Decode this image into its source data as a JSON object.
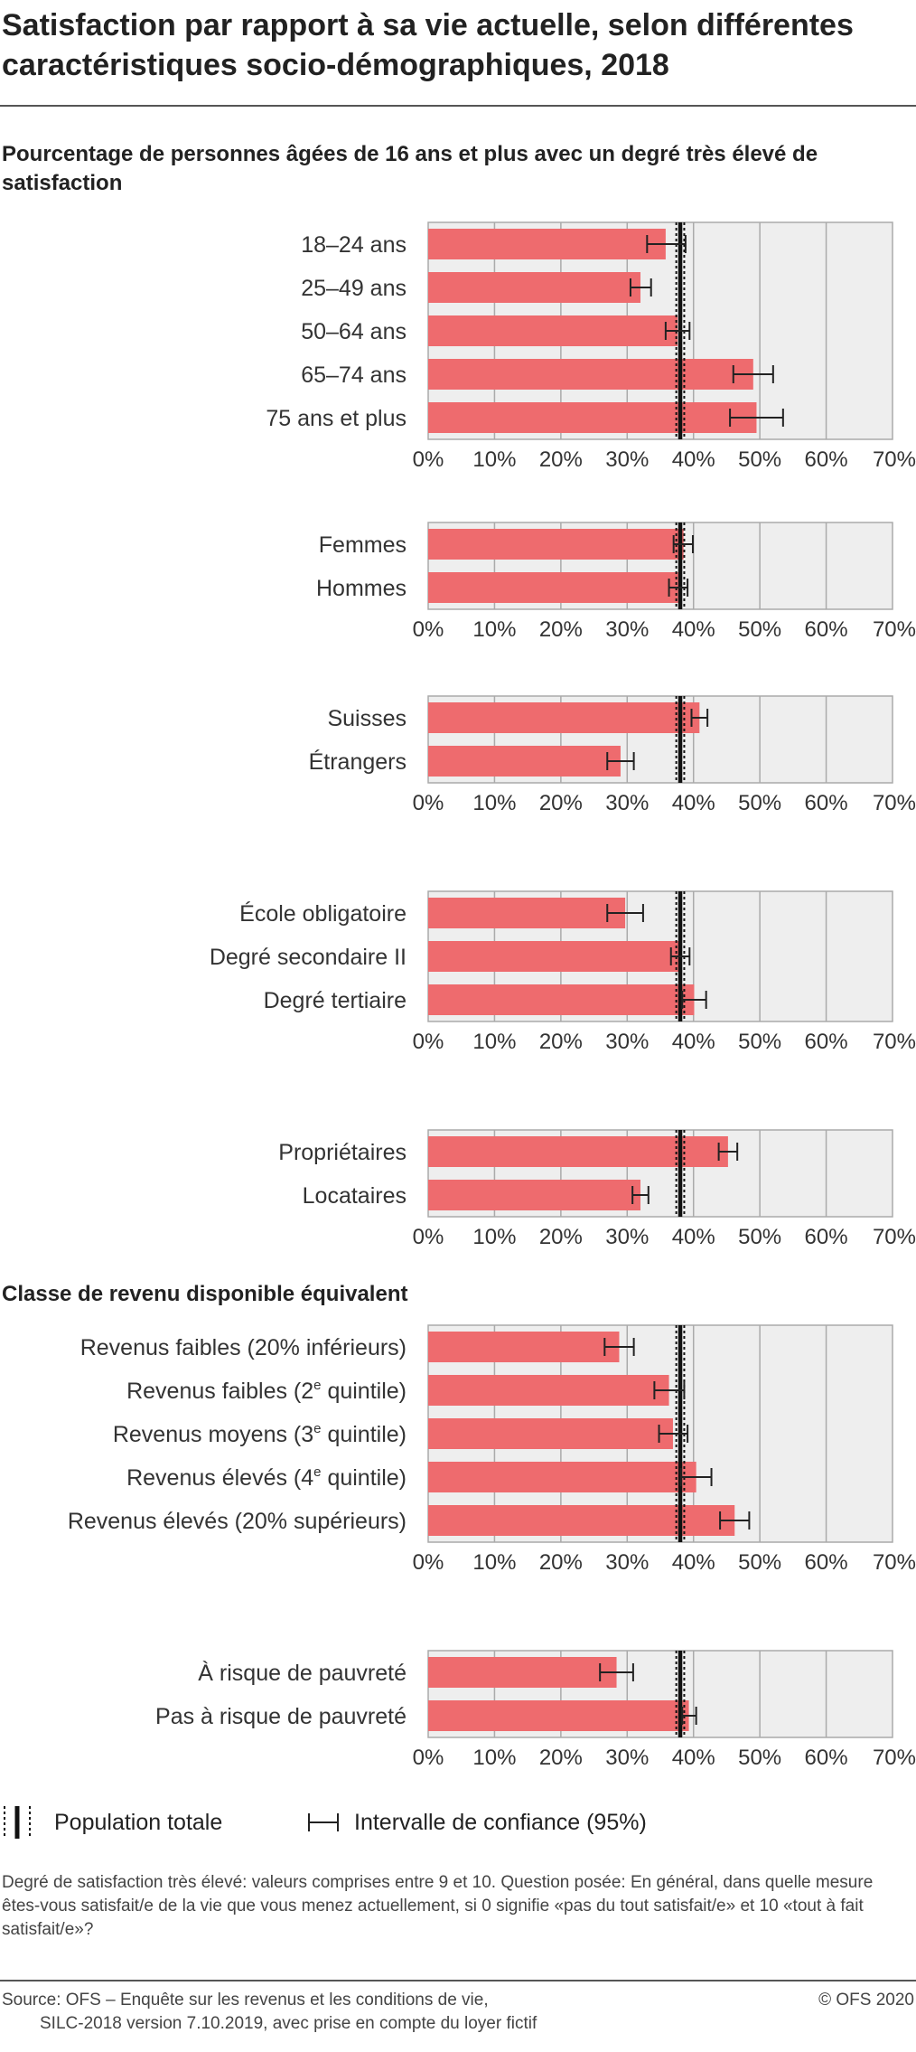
{
  "title": "Satisfaction par rapport à sa vie actuelle, selon différentes caractéristiques socio-démographiques, 2018",
  "subtitle": "Pourcentage de personnes âgées de 16 ans et plus avec un degré très élevé de satisfaction",
  "section_income": "Classe de revenu disponible équivalent",
  "legend": {
    "total_population": "Population totale",
    "confidence_interval": "Intervalle de confiance (95%)"
  },
  "note": "Degré de satisfaction très élevé: valeurs comprises entre 9 et 10. Question posée: En général, dans quelle mesure êtes-vous satisfait/e de la vie que vous menez actuellement, si 0 signifie «pas du tout satisfait/e» et 10 «tout à fait satisfait/e»?",
  "source_line1": "Source: OFS – Enquête sur les revenus et les conditions de vie,",
  "source_line2": "SILC-2018 version 7.10.2019, avec prise en compte du loyer fictif",
  "copyright": "© OFS 2020",
  "colors": {
    "bar": "#ee6b6e",
    "plot_bg": "#eeeeee",
    "grid": "#aaaaaa",
    "total_line": "#111111",
    "error_bar": "#222222"
  },
  "chart_data": {
    "type": "bar",
    "orientation": "horizontal",
    "unit": "%",
    "xlim": [
      0,
      70
    ],
    "x_ticks": [
      "0%",
      "10%",
      "20%",
      "30%",
      "40%",
      "50%",
      "60%",
      "70%"
    ],
    "total_population": {
      "value": 38.0,
      "ci_low": 37.4,
      "ci_high": 38.6
    },
    "panels": [
      {
        "categories": [
          "18–24 ans",
          "25–49 ans",
          "50–64 ans",
          "65–74 ans",
          "75 ans et plus"
        ],
        "values": [
          35.8,
          32.0,
          37.6,
          49.0,
          49.5
        ],
        "ci_low": [
          33.0,
          30.5,
          35.8,
          46.0,
          45.5
        ],
        "ci_high": [
          38.8,
          33.6,
          39.4,
          52.0,
          53.5
        ]
      },
      {
        "categories": [
          "Femmes",
          "Hommes"
        ],
        "values": [
          38.5,
          37.7
        ],
        "ci_low": [
          37.0,
          36.3
        ],
        "ci_high": [
          39.9,
          39.1
        ]
      },
      {
        "categories": [
          "Suisses",
          "Étrangers"
        ],
        "values": [
          40.9,
          29.0
        ],
        "ci_low": [
          39.7,
          27.0
        ],
        "ci_high": [
          42.1,
          31.0
        ]
      },
      {
        "categories": [
          "École obligatoire",
          "Degré secondaire II",
          "Degré tertiaire"
        ],
        "values": [
          29.7,
          38.0,
          40.1
        ],
        "ci_low": [
          27.0,
          36.6,
          38.3
        ],
        "ci_high": [
          32.4,
          39.4,
          41.9
        ]
      },
      {
        "categories": [
          "Propriétaires",
          "Locataires"
        ],
        "values": [
          45.2,
          32.0
        ],
        "ci_low": [
          43.8,
          30.8
        ],
        "ci_high": [
          46.6,
          33.2
        ]
      },
      {
        "categories": [
          "Revenus faibles (20% inférieurs)",
          "Revenus faibles (2e quintile)",
          "Revenus moyens (3e quintile)",
          "Revenus élevés (4e quintile)",
          "Revenus élevés (20% supérieurs)"
        ],
        "values": [
          28.8,
          36.3,
          36.9,
          40.4,
          46.2
        ],
        "ci_low": [
          26.6,
          34.1,
          34.8,
          38.1,
          44.0
        ],
        "ci_high": [
          31.0,
          38.6,
          39.1,
          42.7,
          48.4
        ]
      },
      {
        "categories": [
          "À risque de pauvreté",
          "Pas à risque de pauvreté"
        ],
        "values": [
          28.4,
          39.3
        ],
        "ci_low": [
          25.9,
          38.3
        ],
        "ci_high": [
          30.9,
          40.4
        ]
      }
    ]
  }
}
